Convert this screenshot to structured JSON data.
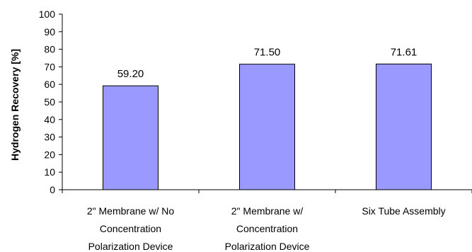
{
  "chart_data": {
    "type": "bar",
    "title": "",
    "xlabel": "",
    "ylabel": "Hydrogen Recovery [%]",
    "ylim": [
      0,
      100
    ],
    "yticks": [
      0,
      10,
      20,
      30,
      40,
      50,
      60,
      70,
      80,
      90,
      100
    ],
    "categories": [
      [
        "2\" Membrane w/ No",
        "Concentration",
        "Polarization Device"
      ],
      [
        "2\" Membrane w/",
        "Concentration",
        "Polarization Device"
      ],
      [
        "Six Tube Assembly"
      ]
    ],
    "values": [
      59.2,
      71.5,
      71.61
    ],
    "value_labels": [
      "59.20",
      "71.50",
      "71.61"
    ],
    "grid": false,
    "legend": "none",
    "bar_fill": "#9999ff",
    "bar_stroke": "#000000"
  }
}
